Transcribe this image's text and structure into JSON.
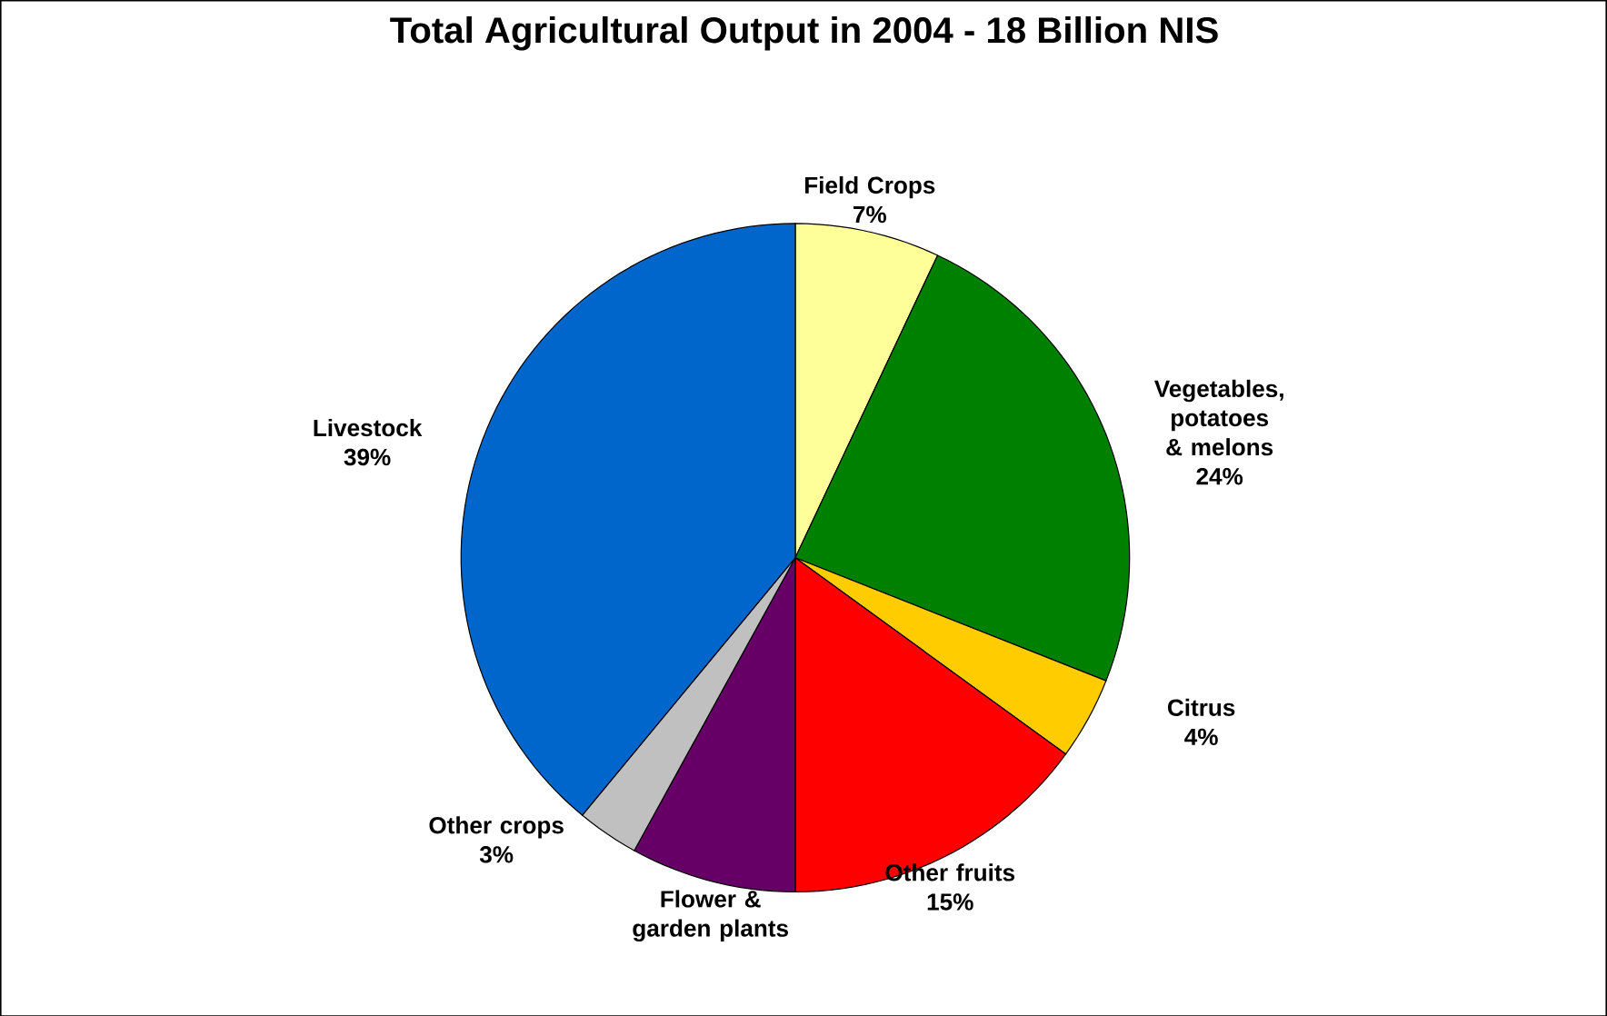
{
  "chart_data": {
    "type": "pie",
    "title": "Total Agricultural Output in 2004 - 18 Billion NIS",
    "categories": [
      "Field Crops",
      "Vegetables, potatoes & melons",
      "Citrus",
      "Other fruits",
      "Flower & garden plants",
      "Other crops",
      "Livestock"
    ],
    "values": [
      7,
      24,
      4,
      15,
      8,
      3,
      39
    ],
    "value_labels": [
      "7%",
      "24%",
      "4%",
      "15%",
      null,
      "3%",
      "39%"
    ],
    "colors": [
      "#ffff99",
      "#008000",
      "#ffcc00",
      "#ff0000",
      "#660066",
      "#c0c0c0",
      "#0066cc"
    ]
  }
}
